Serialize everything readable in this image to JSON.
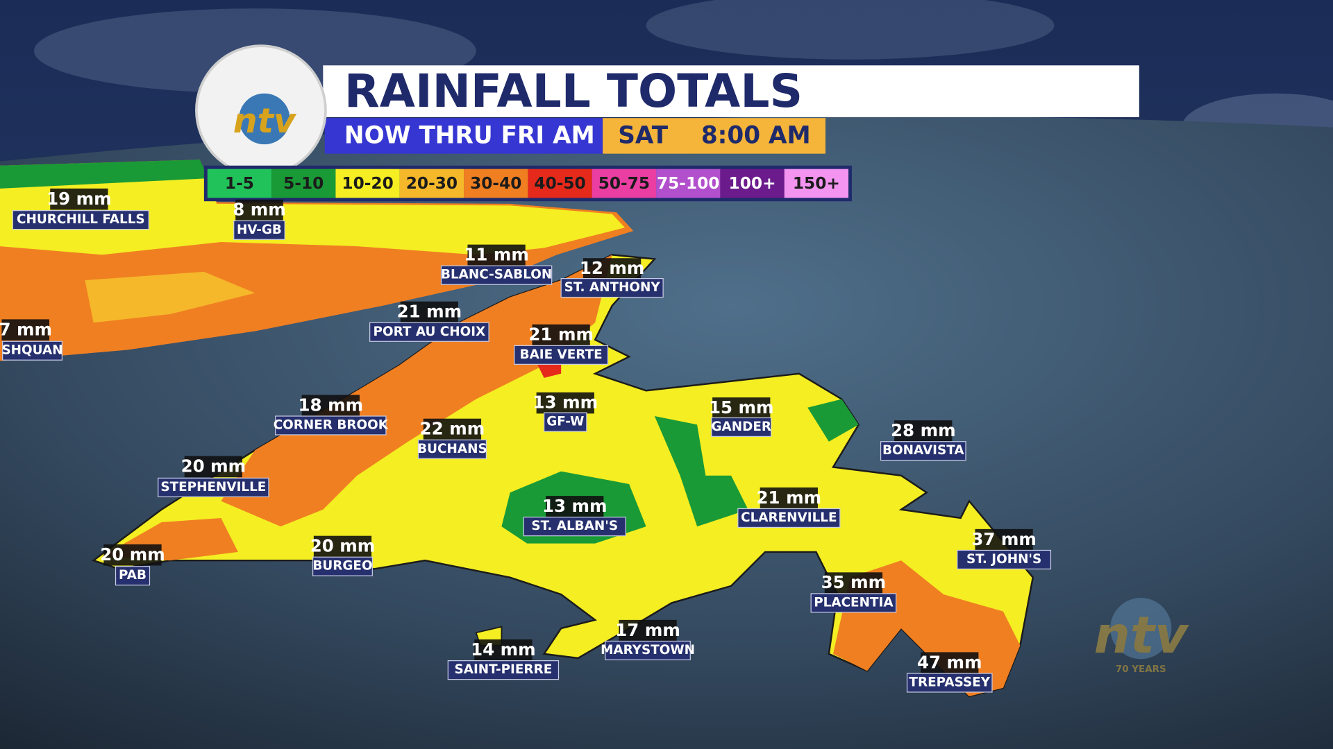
{
  "header": {
    "title": "RAINFALL TOTALS",
    "period": "NOW THRU FRI AM",
    "time": "SAT    8:00 AM",
    "logo": "ntv"
  },
  "legend": [
    {
      "label": "1-5",
      "color": "#22c25a"
    },
    {
      "label": "5-10",
      "color": "#1a9a36"
    },
    {
      "label": "10-20",
      "color": "#f4ee22"
    },
    {
      "label": "20-30",
      "color": "#f5b82a"
    },
    {
      "label": "30-40",
      "color": "#f07f22"
    },
    {
      "label": "40-50",
      "color": "#e52a1c"
    },
    {
      "label": "50-75",
      "color": "#ea3ea2"
    },
    {
      "label": "75-100",
      "color": "#b24fcc"
    },
    {
      "label": "100+",
      "color": "#6b1b8c"
    },
    {
      "label": "150+",
      "color": "#f294f0"
    }
  ],
  "stations": [
    {
      "amount": "19 mm",
      "name": "CHURCHILL FALLS"
    },
    {
      "amount": "8 mm",
      "name": "HV-GB"
    },
    {
      "amount": "11 mm",
      "name": "BLANC-SABLON"
    },
    {
      "amount": "12 mm",
      "name": "ST. ANTHONY"
    },
    {
      "amount": "21 mm",
      "name": "PORT AU CHOIX"
    },
    {
      "amount": "7 mm",
      "name": "SHQUAN"
    },
    {
      "amount": "21 mm",
      "name": "BAIE VERTE"
    },
    {
      "amount": "18 mm",
      "name": "CORNER BROOK"
    },
    {
      "amount": "13 mm",
      "name": "GF-W"
    },
    {
      "amount": "15 mm",
      "name": "GANDER"
    },
    {
      "amount": "28 mm",
      "name": "BONAVISTA"
    },
    {
      "amount": "22 mm",
      "name": "BUCHANS"
    },
    {
      "amount": "20 mm",
      "name": "STEPHENVILLE"
    },
    {
      "amount": "21 mm",
      "name": "CLARENVILLE"
    },
    {
      "amount": "13 mm",
      "name": "ST. ALBAN'S"
    },
    {
      "amount": "37 mm",
      "name": "ST. JOHN'S"
    },
    {
      "amount": "20 mm",
      "name": "PAB"
    },
    {
      "amount": "20 mm",
      "name": "BURGEO"
    },
    {
      "amount": "35 mm",
      "name": "PLACENTIA"
    },
    {
      "amount": "17 mm",
      "name": "MARYSTOWN"
    },
    {
      "amount": "14 mm",
      "name": "SAINT-PIERRE"
    },
    {
      "amount": "47 mm",
      "name": "TREPASSEY"
    }
  ],
  "watermark": {
    "logo": "ntv",
    "caption": "70 YEARS"
  }
}
